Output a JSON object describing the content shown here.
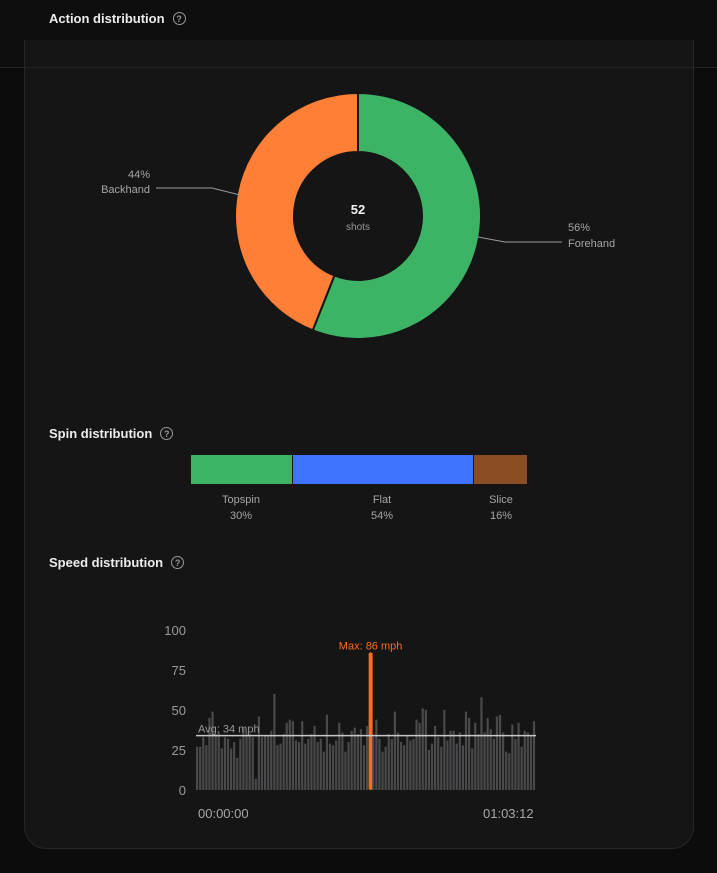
{
  "sections": {
    "action_title": "Action distribution",
    "spin_title": "Spin distribution",
    "speed_title": "Speed distribution",
    "help_glyph": "?"
  },
  "chart_data": [
    {
      "type": "pie",
      "title": "Action distribution",
      "donut": true,
      "center_value": "52",
      "center_label": "shots",
      "slices": [
        {
          "label": "Forehand",
          "percent_label": "56%",
          "value": 56,
          "color": "#3db365"
        },
        {
          "label": "Backhand",
          "percent_label": "44%",
          "value": 44,
          "color": "#ff7f36"
        }
      ]
    },
    {
      "type": "bar",
      "stacked": true,
      "title": "Spin distribution",
      "segments": [
        {
          "label": "Topspin",
          "percent_label": "30%",
          "value": 30,
          "color": "#3db365"
        },
        {
          "label": "Flat",
          "percent_label": "54%",
          "value": 54,
          "color": "#3e73ff"
        },
        {
          "label": "Slice",
          "percent_label": "16%",
          "value": 16,
          "color": "#8b4d24"
        }
      ]
    },
    {
      "type": "bar",
      "title": "Speed distribution",
      "ylim": [
        0,
        100
      ],
      "yticks": [
        100,
        75,
        50,
        25,
        0
      ],
      "x_start_label": "00:00:00",
      "x_end_label": "01:03:12",
      "avg_value": 34,
      "avg_label": "Avg: 34 mph",
      "max_value": 86,
      "max_label": "Max: 86 mph",
      "max_index": 56,
      "bar_color": "#4a4a4c",
      "max_color": "#ff6a1f",
      "values": [
        27,
        27,
        33,
        28,
        45,
        49,
        35,
        36,
        26,
        33,
        32,
        26,
        30,
        20,
        32,
        39,
        36,
        35,
        33,
        7,
        46,
        33,
        34,
        34,
        37,
        60,
        28,
        29,
        35,
        42,
        44,
        43,
        31,
        30,
        43,
        29,
        32,
        35,
        40,
        30,
        32,
        24,
        47,
        29,
        28,
        31,
        42,
        36,
        24,
        30,
        37,
        39,
        35,
        38,
        28,
        40,
        86,
        33,
        44,
        32,
        24,
        27,
        35,
        32,
        49,
        36,
        30,
        28,
        34,
        31,
        32,
        44,
        42,
        51,
        50,
        25,
        29,
        40,
        33,
        27,
        50,
        31,
        37,
        37,
        29,
        36,
        28,
        49,
        45,
        26,
        42,
        35,
        58,
        36,
        45,
        38,
        32,
        46,
        47,
        36,
        24,
        23,
        41,
        32,
        42,
        27,
        37,
        36,
        34,
        43
      ]
    }
  ]
}
